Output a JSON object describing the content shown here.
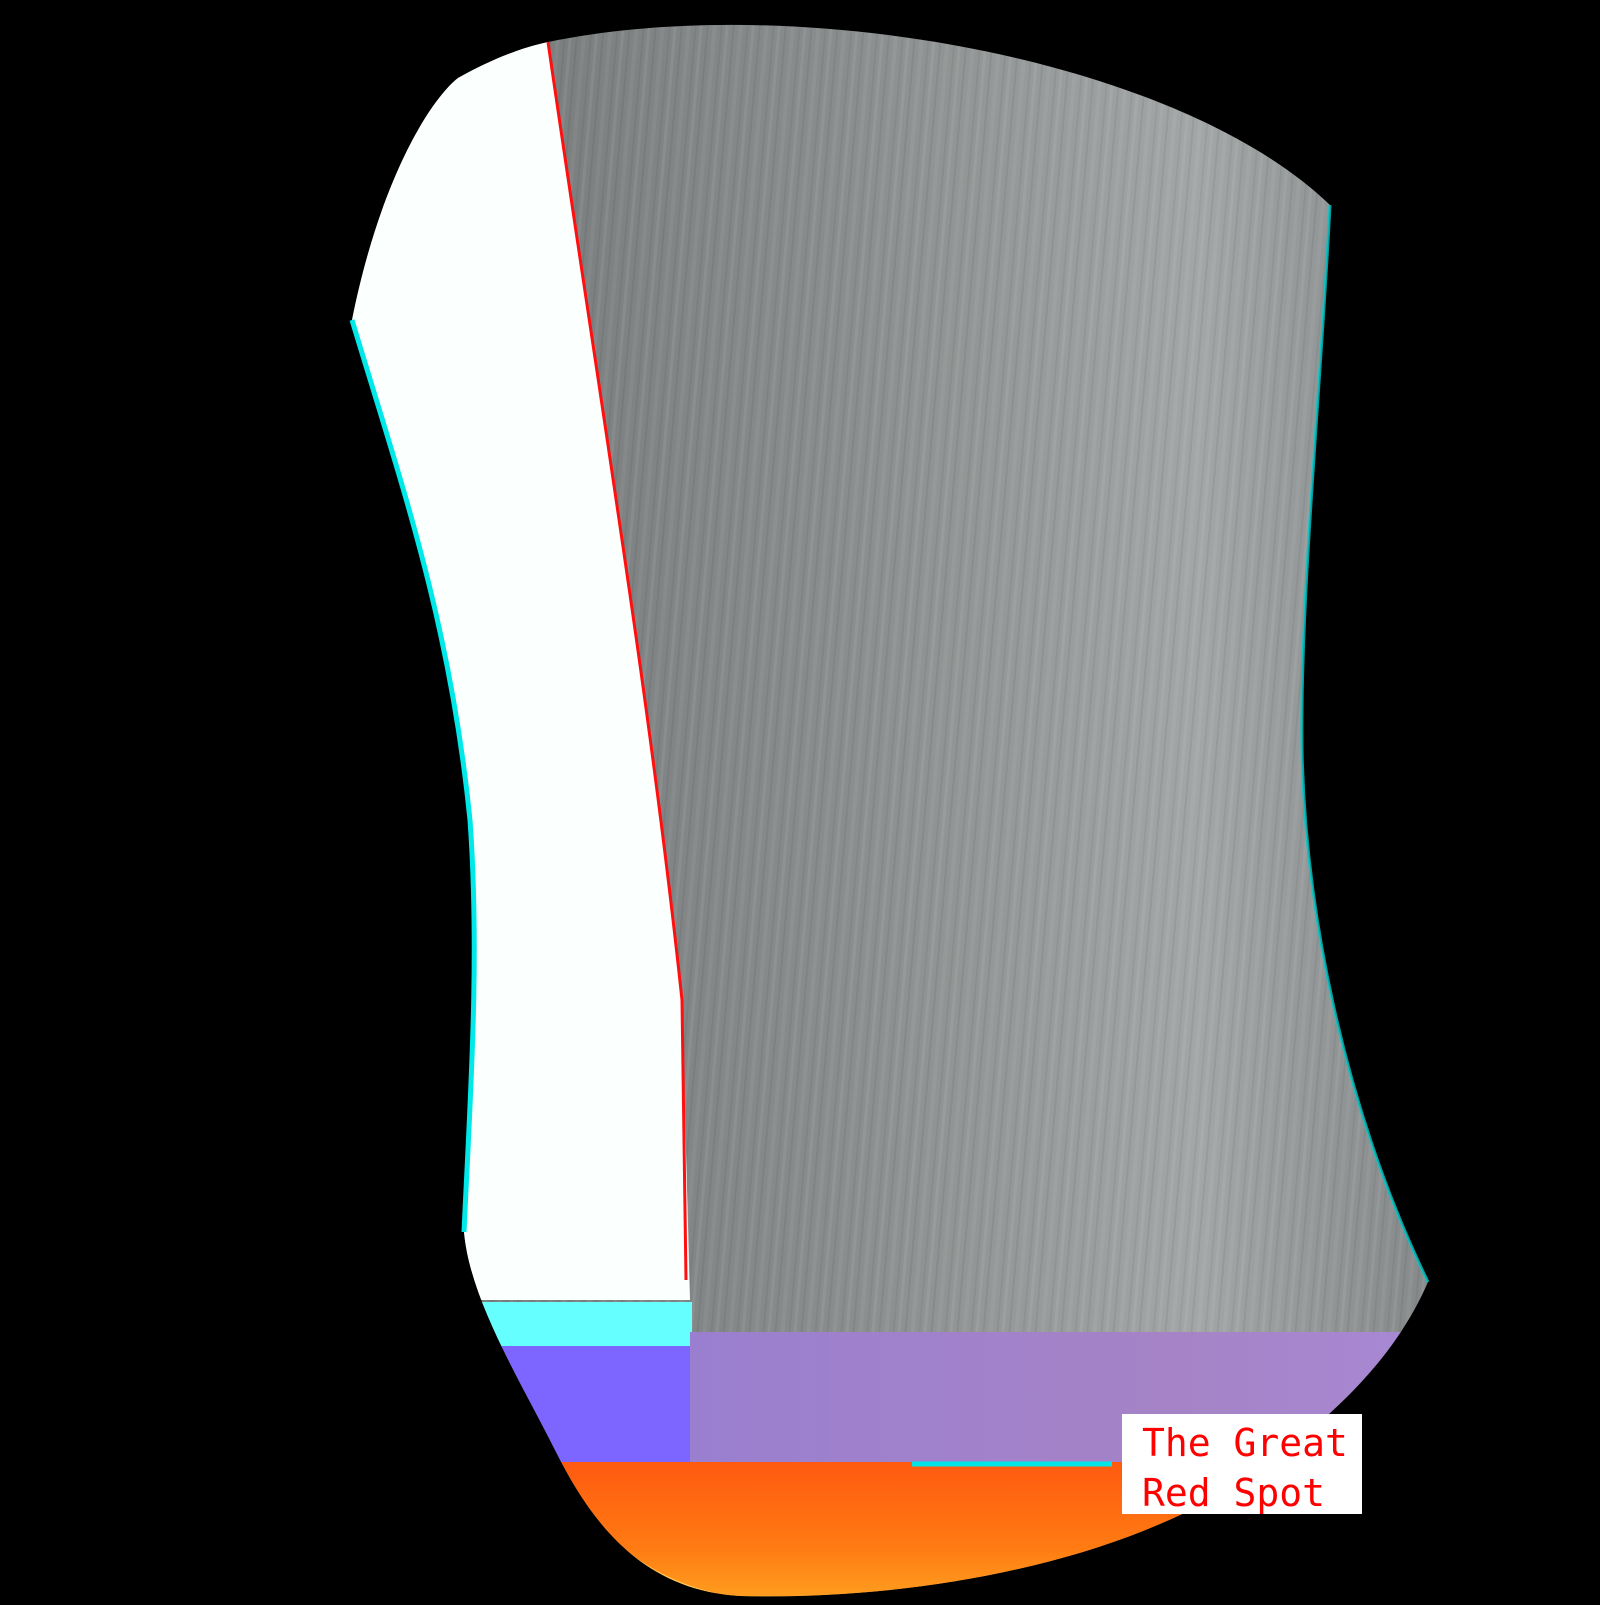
{
  "image": {
    "background_color": "#000000",
    "subject": "jupiter-strip-projection",
    "annotation": {
      "line1": "The Great",
      "line2": "Red Spot",
      "text_color": "#ff0000",
      "box_color": "#ffffff",
      "pointer_color": "#00e5e5"
    },
    "colors": {
      "overexposed_band": "#fbfffe",
      "cloud_bands_gray": "#8c8f8f",
      "cyan_band": "#66ffff",
      "violet_band": "#7d66ff",
      "lilac_band": "#a07fc8",
      "orange_band": "#ff6a10",
      "yellow_edge": "#ffd060",
      "red_fringe": "#ff1010",
      "cyan_fringe": "#00e8e8"
    }
  }
}
